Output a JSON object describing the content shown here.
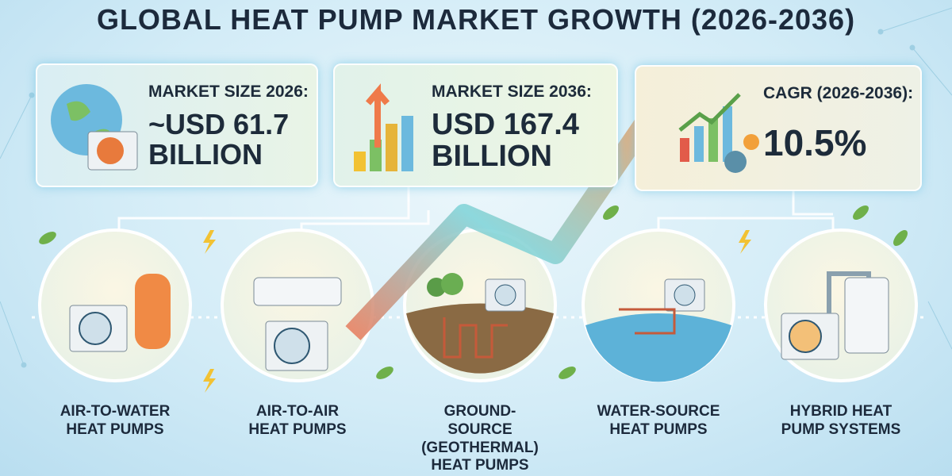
{
  "title": "GLOBAL HEAT PUMP MARKET GROWTH (2026-2036)",
  "stats": [
    {
      "label": "MARKET SIZE 2026:",
      "value": "~USD 61.7 BILLION"
    },
    {
      "label": "MARKET SIZE 2036:",
      "value": "USD 167.4 BILLION"
    },
    {
      "label": "CAGR (2026-2036):",
      "value": "10.5%"
    }
  ],
  "segments": [
    "AIR-TO-WATER HEAT PUMPS",
    "AIR-TO-AIR HEAT PUMPS",
    "GROUND-SOURCE (GEOTHERMAL) HEAT PUMPS",
    "WATER-SOURCE HEAT PUMPS",
    "HYBRID HEAT PUMP SYSTEMS"
  ]
}
